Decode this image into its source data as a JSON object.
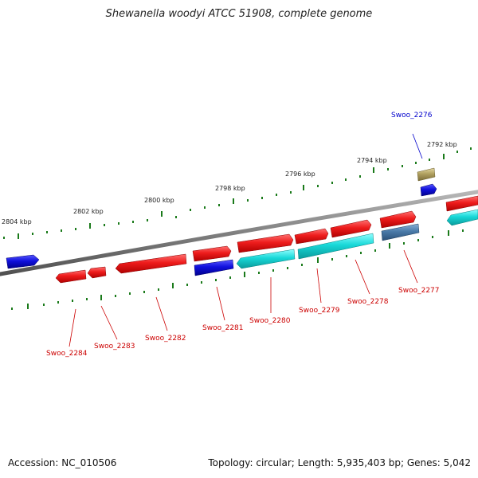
{
  "title": "Shewanella woodyi ATCC 51908, complete genome",
  "footer": {
    "accession": "Accession: NC_010506",
    "summary": "Topology: circular; Length: 5,935,403 bp; Genes: 5,042"
  },
  "scale_labels": [
    "2804 kbp",
    "2802 kbp",
    "2800 kbp",
    "2798 kbp",
    "2796 kbp",
    "2794 kbp",
    "2792 kbp"
  ],
  "gene_labels": [
    {
      "text": "Swoo_2276",
      "color": "#0000cc"
    },
    {
      "text": "Swoo_2277",
      "color": "#cc0000"
    },
    {
      "text": "Swoo_2278",
      "color": "#cc0000"
    },
    {
      "text": "Swoo_2279",
      "color": "#cc0000"
    },
    {
      "text": "Swoo_2280",
      "color": "#cc0000"
    },
    {
      "text": "Swoo_2281",
      "color": "#cc0000"
    },
    {
      "text": "Swoo_2282",
      "color": "#cc0000"
    },
    {
      "text": "Swoo_2283",
      "color": "#cc0000"
    },
    {
      "text": "Swoo_2284",
      "color": "#cc0000"
    }
  ],
  "colors": {
    "backbone": "#808080",
    "tick": "#1a7a1a",
    "red_feature": "#ee1c1c",
    "blue_feature": "#1010dd",
    "cyan_feature": "#18d8d8",
    "steel_feature": "#4a7aa8",
    "olive_feature": "#b0a060"
  }
}
